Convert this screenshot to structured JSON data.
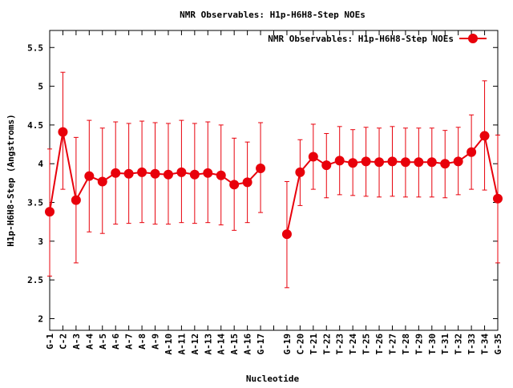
{
  "chart_data": {
    "type": "line",
    "title": "NMR Observables: H1p-H6H8-Step NOEs",
    "xlabel": "Nucleotide",
    "ylabel": "H1p-H6H8-Step (Angstroms)",
    "ylim": [
      1.85,
      5.72
    ],
    "yticks": [
      "2",
      "2.5",
      "3",
      "3.5",
      "4",
      "4.5",
      "5",
      "5.5"
    ],
    "legend_position": "top-right",
    "grid": false,
    "categories": [
      "G-1",
      "C-2",
      "A-3",
      "A-4",
      "A-5",
      "A-6",
      "A-7",
      "A-8",
      "A-9",
      "A-10",
      "A-11",
      "A-12",
      "A-13",
      "A-14",
      "A-15",
      "A-16",
      "G-17",
      "",
      "G-19",
      "C-20",
      "T-21",
      "T-22",
      "T-23",
      "T-24",
      "T-25",
      "T-26",
      "T-27",
      "T-28",
      "T-29",
      "T-30",
      "T-31",
      "T-32",
      "T-33",
      "T-34",
      "G-35"
    ],
    "series": [
      {
        "name": "NMR Observables: H1p-H6H8-Step NOEs",
        "color": "#e8000b",
        "values": [
          3.38,
          4.41,
          3.53,
          3.84,
          3.77,
          3.88,
          3.87,
          3.89,
          3.87,
          3.86,
          3.89,
          3.86,
          3.88,
          3.85,
          3.73,
          3.76,
          3.94,
          null,
          3.09,
          3.89,
          4.09,
          3.98,
          4.04,
          4.01,
          4.03,
          4.02,
          4.03,
          4.02,
          4.02,
          4.02,
          4.0,
          4.03,
          4.15,
          4.36,
          3.55
        ],
        "err_low": [
          2.55,
          3.67,
          2.72,
          3.12,
          3.1,
          3.22,
          3.23,
          3.24,
          3.22,
          3.22,
          3.24,
          3.23,
          3.24,
          3.21,
          3.14,
          3.24,
          3.37,
          null,
          2.4,
          3.46,
          3.67,
          3.56,
          3.6,
          3.59,
          3.58,
          3.57,
          3.58,
          3.57,
          3.57,
          3.57,
          3.56,
          3.6,
          3.67,
          3.66,
          2.72
        ],
        "err_high": [
          4.19,
          5.18,
          4.34,
          4.56,
          4.46,
          4.54,
          4.52,
          4.55,
          4.53,
          4.52,
          4.56,
          4.52,
          4.54,
          4.5,
          4.33,
          4.28,
          4.53,
          null,
          3.77,
          4.31,
          4.51,
          4.39,
          4.48,
          4.44,
          4.47,
          4.46,
          4.48,
          4.46,
          4.46,
          4.46,
          4.43,
          4.47,
          4.63,
          5.07,
          4.37
        ]
      }
    ]
  }
}
